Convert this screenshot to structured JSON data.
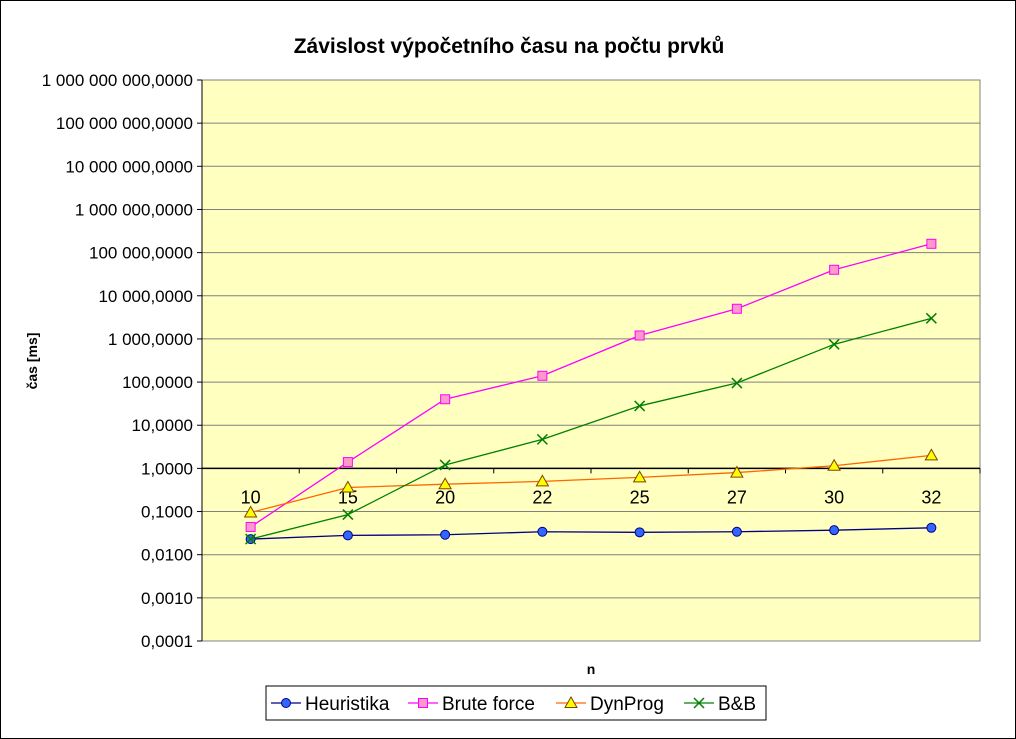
{
  "chart_data": {
    "type": "line",
    "title": "Závislost výpočetního času na počtu prvků",
    "xlabel": "n",
    "ylabel": "čas [ms]",
    "y_scale": "log",
    "ylim": [
      0.0001,
      1000000000
    ],
    "y_ticks": [
      0.0001,
      0.001,
      0.01,
      0.1,
      1,
      10,
      100,
      1000,
      10000,
      100000,
      1000000,
      10000000,
      100000000,
      1000000000
    ],
    "y_tick_labels": [
      "0,0001",
      "0,0010",
      "0,0100",
      "0,1000",
      "1,0000",
      "10,0000",
      "100,0000",
      "1 000,0000",
      "10 000,0000",
      "100 000,0000",
      "1 000 000,0000",
      "10 000 000,0000",
      "100 000 000,0000",
      "1 000 000 000,0000"
    ],
    "x_axis_crosses_at": 1,
    "categories": [
      "10",
      "15",
      "20",
      "22",
      "25",
      "27",
      "30",
      "32"
    ],
    "grid": "horizontal major",
    "plot_background": "#ffffc0",
    "legend_position": "bottom",
    "series": [
      {
        "name": "Heuristika",
        "color": "#000080",
        "marker": "circle",
        "marker_fill": "#3366ff",
        "values": [
          0.023,
          0.028,
          0.029,
          0.034,
          0.033,
          0.034,
          0.037,
          0.042
        ]
      },
      {
        "name": "Brute force",
        "color": "#ff00ff",
        "marker": "square",
        "marker_fill": "#ff99cc",
        "values": [
          0.044,
          1.4,
          40,
          140,
          1200,
          5000,
          40000,
          160000
        ]
      },
      {
        "name": "DynProg",
        "color": "#ff6600",
        "marker": "triangle",
        "marker_fill": "#ffff00",
        "values": [
          0.095,
          0.36,
          0.43,
          0.5,
          0.62,
          0.8,
          1.15,
          2.0
        ]
      },
      {
        "name": "B&B",
        "color": "#008000",
        "marker": "x",
        "marker_fill": "#00ff00",
        "values": [
          0.023,
          0.085,
          1.2,
          4.7,
          28,
          95,
          750,
          3000
        ]
      }
    ]
  }
}
